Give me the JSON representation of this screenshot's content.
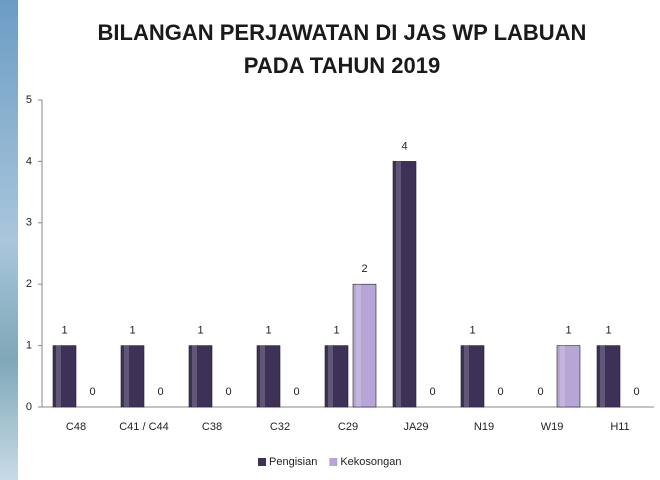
{
  "chart_data": {
    "type": "bar",
    "title": "BILANGAN PERJAWATAN DI JAS WP LABUAN PADA TAHUN 2019",
    "categories": [
      "C48",
      "C41 / C44",
      "C38",
      "C32",
      "C29",
      "JA29",
      "N19",
      "W19",
      "H11"
    ],
    "series": [
      {
        "name": "Pengisian",
        "color": "#3d3158",
        "values": [
          1,
          1,
          1,
          1,
          1,
          4,
          1,
          0,
          1
        ]
      },
      {
        "name": "Kekosongan",
        "color": "#b8a5d8",
        "values": [
          0,
          0,
          0,
          0,
          2,
          0,
          0,
          1,
          0
        ]
      }
    ],
    "ylim": [
      0,
      5
    ],
    "yticks": [
      0,
      1,
      2,
      3,
      4,
      5
    ],
    "legend": "bottom"
  }
}
